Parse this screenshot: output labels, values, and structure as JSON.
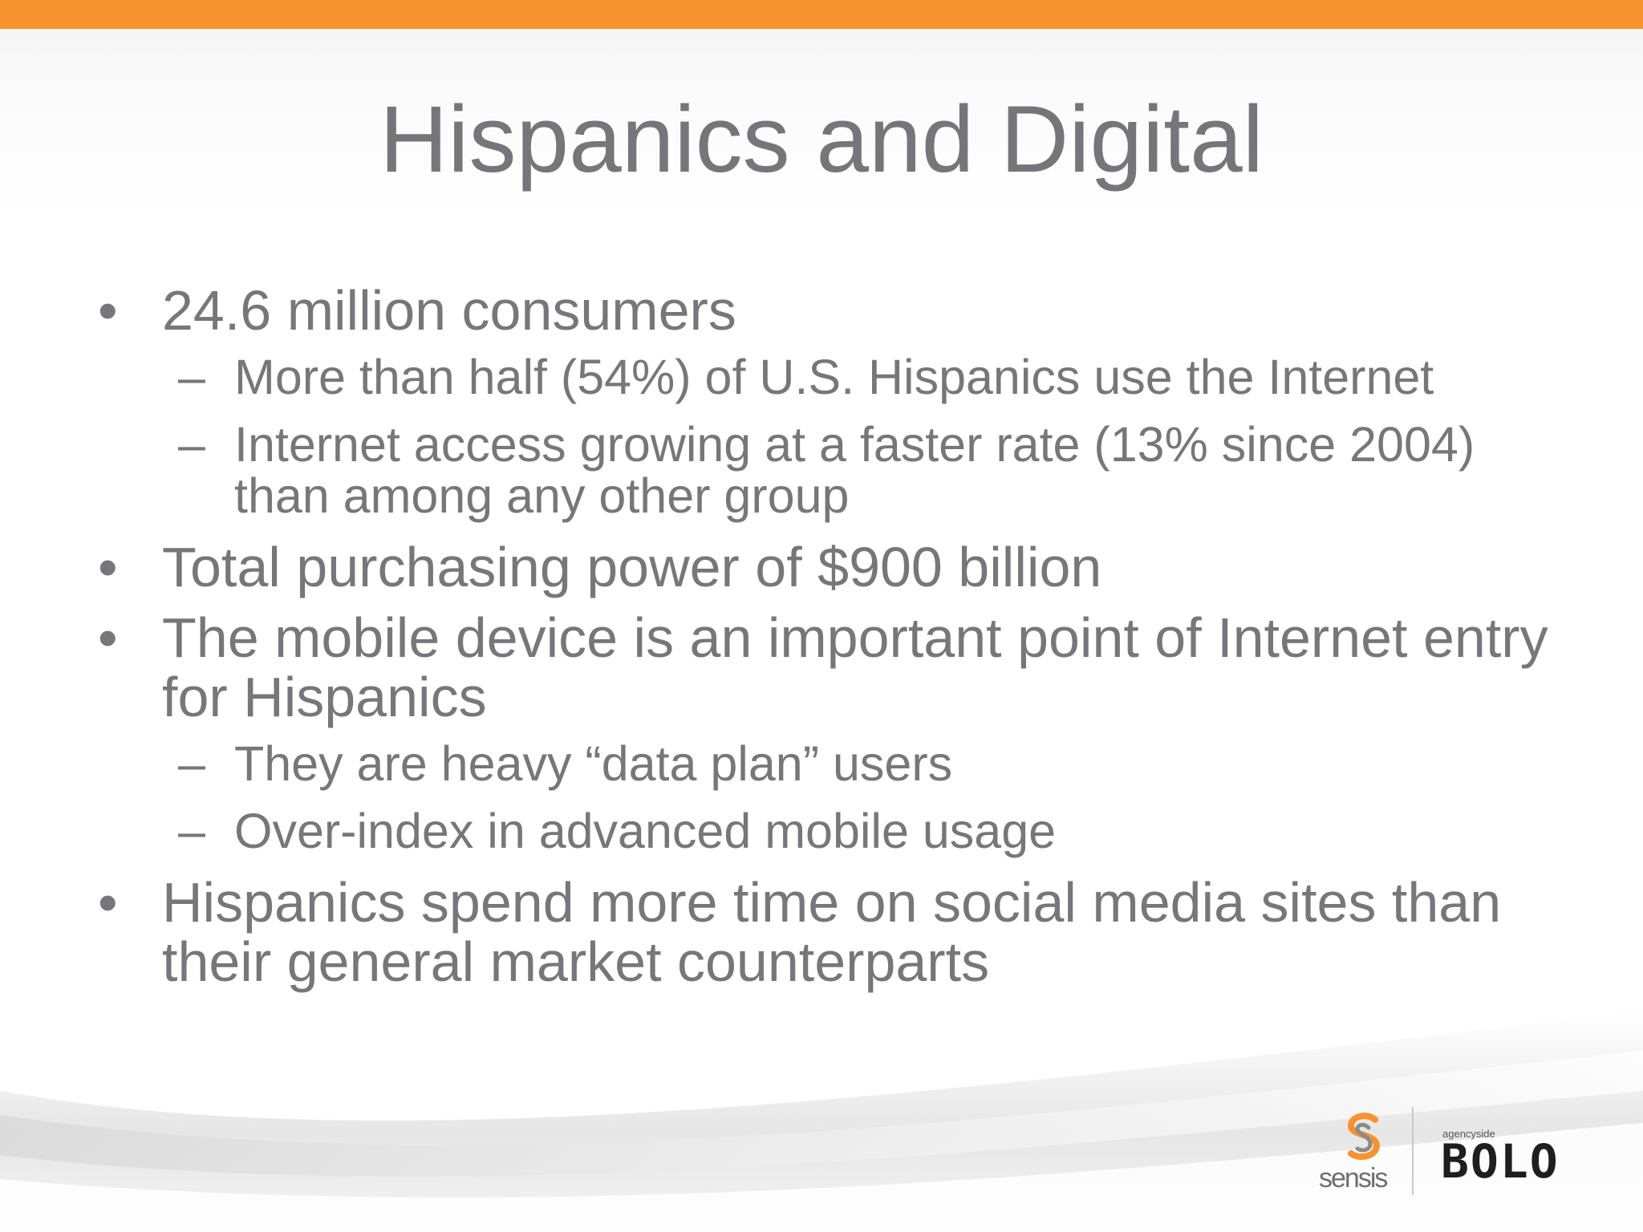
{
  "colors": {
    "accent": "#f7922f",
    "text": "#77777b"
  },
  "slide": {
    "title": "Hispanics and Digital",
    "bullets": [
      {
        "text": "24.6 million consumers",
        "sub": [
          "More than half (54%) of U.S. Hispanics use the Internet",
          "Internet access growing at a faster rate (13% since 2004) than among any other group"
        ]
      },
      {
        "text": "Total purchasing power of $900 billion",
        "sub": []
      },
      {
        "text": "The mobile device is an important point of Internet entry for Hispanics",
        "sub": [
          "They are heavy “data plan” users",
          "Over-index in advanced mobile usage"
        ]
      },
      {
        "text": "Hispanics spend more time on social media sites than their general market counterparts",
        "sub": []
      }
    ],
    "bullet_glyph": "•",
    "dash_glyph": "–"
  },
  "logos": {
    "sensis": "sensis",
    "bolo_tag": "agencyside",
    "bolo": "BOLO",
    "icons": [
      "sensis-logo-icon"
    ]
  }
}
